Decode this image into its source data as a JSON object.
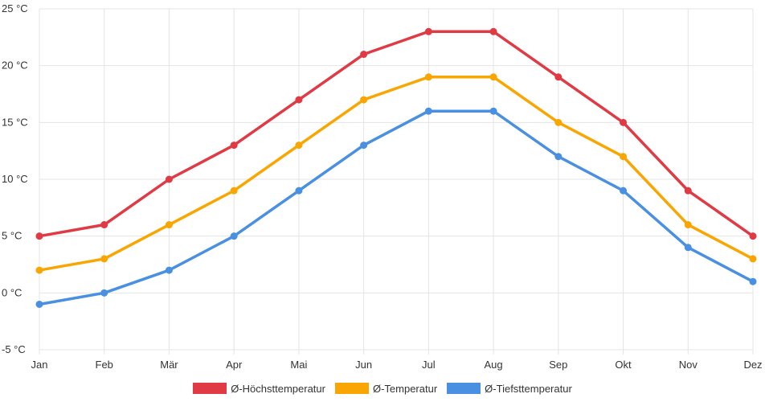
{
  "chart_data": {
    "type": "line",
    "categories": [
      "Jan",
      "Feb",
      "Mär",
      "Apr",
      "Mai",
      "Jun",
      "Jul",
      "Aug",
      "Sep",
      "Okt",
      "Nov",
      "Dez"
    ],
    "ylim": [
      -5,
      25
    ],
    "yticks": [
      -5,
      0,
      5,
      10,
      15,
      20,
      25
    ],
    "y_unit": "°C",
    "y_tick_labels": [
      "-5 °C",
      "0 °C",
      "5 °C",
      "10 °C",
      "15 °C",
      "20 °C",
      "25 °C"
    ],
    "grid": true,
    "legend_position": "bottom",
    "series": [
      {
        "name": "Ø-Höchsttemperatur",
        "color": "#e03a45",
        "values": [
          5,
          6,
          10,
          13,
          17,
          21,
          23,
          23,
          19,
          15,
          9,
          5
        ]
      },
      {
        "name": "Ø-Temperatur",
        "color": "#f9a602",
        "values": [
          2,
          3,
          6,
          9,
          13,
          17,
          19,
          19,
          15,
          12,
          6,
          3
        ]
      },
      {
        "name": "Ø-Tiefsttemperatur",
        "color": "#4a90e2",
        "values": [
          -1,
          0,
          2,
          5,
          9,
          13,
          16,
          16,
          12,
          9,
          4,
          1
        ]
      }
    ]
  }
}
